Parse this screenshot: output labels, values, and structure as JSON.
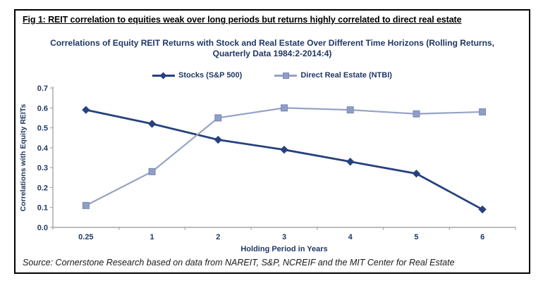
{
  "figure": {
    "title": "Fig 1: REIT correlation to equities weak over long periods but returns highly correlated to direct real estate",
    "source": "Source: Cornerstone Research based on data from NAREIT, S&P, NCREIF and the MIT Center for Real Estate"
  },
  "chart_data": {
    "type": "line",
    "title": "Correlations of Equity REIT Returns with Stock and Real Estate Over Different Time Horizons (Rolling Returns, Quarterly Data 1984:2-2014:4)",
    "title_lines": [
      "Correlations of Equity REIT Returns with Stock and Real Estate Over Different Time Horizons (Rolling Returns,",
      "Quarterly Data 1984:2-2014:4)"
    ],
    "categories": [
      "0.25",
      "1",
      "2",
      "3",
      "4",
      "5",
      "6"
    ],
    "series": [
      {
        "name": "Stocks (S&P 500)",
        "marker": "diamond",
        "color": "#26417E",
        "values": [
          0.59,
          0.52,
          0.44,
          0.39,
          0.33,
          0.27,
          0.09
        ]
      },
      {
        "name": "Direct Real Estate (NTBI)",
        "marker": "square",
        "color": "#95A3C6",
        "fill": "#8F9EC4",
        "border": "#7B89B5",
        "values": [
          0.11,
          0.28,
          0.55,
          0.6,
          0.59,
          0.57,
          0.58
        ]
      }
    ],
    "xlabel": "Holding Period in Years",
    "ylabel": "Correlations with Equity REITs",
    "ylim": [
      0.0,
      0.7
    ],
    "ytick_step": 0.1,
    "yticks": [
      "0.0",
      "0.1",
      "0.2",
      "0.3",
      "0.4",
      "0.5",
      "0.6",
      "0.7"
    ],
    "grid": false,
    "legend_position": "top"
  },
  "colors": {
    "text_navy": "#1F3864",
    "axis_line": "#A6A6A6",
    "frame_border": "#000000"
  }
}
